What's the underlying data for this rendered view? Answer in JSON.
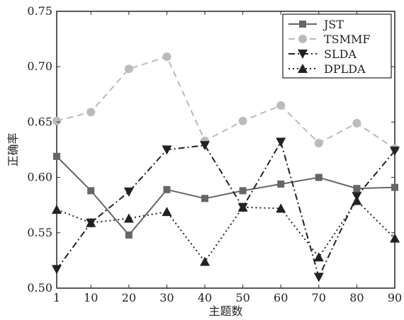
{
  "chart_data": {
    "type": "line",
    "xlabel": "主题数",
    "ylabel": "正确率",
    "x": [
      1,
      10,
      20,
      30,
      40,
      50,
      60,
      70,
      80,
      90
    ],
    "xticks": [
      "1",
      "10",
      "20",
      "30",
      "40",
      "50",
      "60",
      "70",
      "80",
      "90"
    ],
    "ylim": [
      0.5,
      0.75
    ],
    "yticks": [
      "0.50",
      "0.55",
      "0.60",
      "0.65",
      "0.70",
      "0.75"
    ],
    "grid": false,
    "legend_position": "top-right",
    "series": [
      {
        "name": "JST",
        "color": "#666666",
        "linestyle": "solid",
        "marker": "square",
        "values": [
          0.619,
          0.588,
          0.548,
          0.589,
          0.581,
          0.588,
          0.594,
          0.6,
          0.59,
          0.591
        ]
      },
      {
        "name": "TSMMF",
        "color": "#bbbbbb",
        "linestyle": "dashed",
        "marker": "circle",
        "values": [
          0.651,
          0.659,
          0.698,
          0.709,
          0.633,
          0.651,
          0.665,
          0.631,
          0.649,
          0.626
        ]
      },
      {
        "name": "SLDA",
        "color": "#222222",
        "linestyle": "dashdot",
        "marker": "triangle-down",
        "values": [
          0.517,
          0.559,
          0.587,
          0.625,
          0.629,
          0.573,
          0.632,
          0.51,
          0.583,
          0.624
        ]
      },
      {
        "name": "DPLDA",
        "color": "#222222",
        "linestyle": "dotted",
        "marker": "triangle-up",
        "values": [
          0.571,
          0.559,
          0.563,
          0.569,
          0.524,
          0.573,
          0.572,
          0.528,
          0.579,
          0.545
        ]
      }
    ]
  }
}
